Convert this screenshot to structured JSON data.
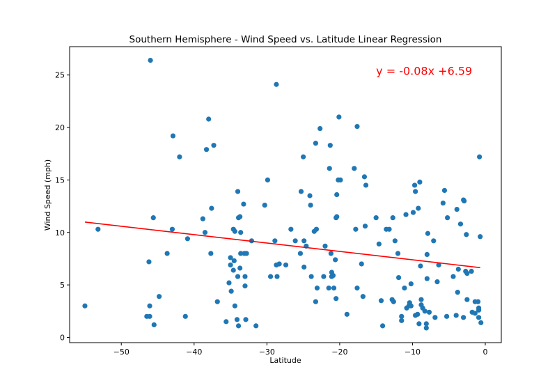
{
  "chart_data": {
    "type": "scatter",
    "title": "Southern Hemisphere - Wind Speed vs. Latitude Linear Regression",
    "xlabel": "Latitude",
    "ylabel": "Wind Speed (mph)",
    "xlim": [
      -57.1,
      2.2
    ],
    "ylim": [
      -0.5,
      27.7
    ],
    "xticks": [
      -50,
      -40,
      -30,
      -20,
      -10,
      0
    ],
    "yticks": [
      0,
      5,
      10,
      15,
      20,
      25
    ],
    "xtick_labels": [
      "−50",
      "−40",
      "−30",
      "−20",
      "−10",
      "0"
    ],
    "ytick_labels": [
      "0",
      "5",
      "10",
      "15",
      "20",
      "25"
    ],
    "grid": false,
    "point_color": "#1f77b4",
    "line_color": "#ff0000",
    "annotation": "y = -0.08x +6.59",
    "regression": {
      "slope": -0.08,
      "intercept": 6.59,
      "x_range": [
        -55,
        -0.7
      ]
    },
    "points": [
      [
        -55.0,
        3.0
      ],
      [
        -53.2,
        10.3
      ],
      [
        -46.5,
        2.0
      ],
      [
        -46.1,
        2.0
      ],
      [
        -46.0,
        26.4
      ],
      [
        -46.2,
        7.2
      ],
      [
        -46.1,
        3.0
      ],
      [
        -45.5,
        1.2
      ],
      [
        -45.6,
        11.4
      ],
      [
        -44.8,
        3.9
      ],
      [
        -43.7,
        8.0
      ],
      [
        -42.9,
        19.2
      ],
      [
        -43.0,
        10.3
      ],
      [
        -42.0,
        17.2
      ],
      [
        -41.2,
        2.0
      ],
      [
        -40.9,
        9.4
      ],
      [
        -38.8,
        11.3
      ],
      [
        -38.5,
        10.0
      ],
      [
        -38.3,
        17.9
      ],
      [
        -38.0,
        20.8
      ],
      [
        -37.7,
        8.0
      ],
      [
        -37.6,
        12.3
      ],
      [
        -37.3,
        18.3
      ],
      [
        -36.8,
        3.4
      ],
      [
        -35.6,
        1.5
      ],
      [
        -35.2,
        5.2
      ],
      [
        -35.0,
        7.6
      ],
      [
        -35.0,
        6.9
      ],
      [
        -34.9,
        4.4
      ],
      [
        -34.6,
        10.3
      ],
      [
        -34.4,
        10.1
      ],
      [
        -34.5,
        7.3
      ],
      [
        -34.6,
        6.4
      ],
      [
        -34.4,
        3.0
      ],
      [
        -34.1,
        1.7
      ],
      [
        -34.0,
        13.9
      ],
      [
        -33.9,
        11.4
      ],
      [
        -33.7,
        11.5
      ],
      [
        -33.9,
        1.1
      ],
      [
        -33.6,
        8.0
      ],
      [
        -33.7,
        6.6
      ],
      [
        -34.0,
        5.8
      ],
      [
        -33.6,
        10.0
      ],
      [
        -33.2,
        12.7
      ],
      [
        -33.1,
        8.0
      ],
      [
        -32.8,
        8.0
      ],
      [
        -33.0,
        5.8
      ],
      [
        -33.0,
        4.9
      ],
      [
        -32.9,
        1.7
      ],
      [
        -32.1,
        9.2
      ],
      [
        -31.5,
        1.1
      ],
      [
        -30.3,
        12.6
      ],
      [
        -29.9,
        15.0
      ],
      [
        -29.5,
        5.8
      ],
      [
        -28.9,
        9.2
      ],
      [
        -28.7,
        24.1
      ],
      [
        -28.6,
        5.8
      ],
      [
        -28.7,
        6.9
      ],
      [
        -28.3,
        7.0
      ],
      [
        -27.4,
        6.9
      ],
      [
        -26.7,
        10.3
      ],
      [
        -26.1,
        9.2
      ],
      [
        -25.4,
        8.0
      ],
      [
        -25.3,
        13.9
      ],
      [
        -25.0,
        17.2
      ],
      [
        -24.9,
        9.2
      ],
      [
        -24.9,
        6.7
      ],
      [
        -24.6,
        8.7
      ],
      [
        -24.1,
        13.5
      ],
      [
        -24.0,
        12.6
      ],
      [
        -23.9,
        5.8
      ],
      [
        -23.5,
        10.1
      ],
      [
        -23.2,
        10.3
      ],
      [
        -23.3,
        18.5
      ],
      [
        -23.3,
        3.4
      ],
      [
        -23.1,
        4.7
      ],
      [
        -22.7,
        19.9
      ],
      [
        -22.2,
        5.8
      ],
      [
        -22.0,
        8.7
      ],
      [
        -21.5,
        4.7
      ],
      [
        -21.4,
        16.1
      ],
      [
        -21.3,
        18.3
      ],
      [
        -21.2,
        8.0
      ],
      [
        -21.1,
        6.2
      ],
      [
        -21.1,
        5.8
      ],
      [
        -20.9,
        5.9
      ],
      [
        -20.8,
        4.7
      ],
      [
        -20.6,
        7.4
      ],
      [
        -20.5,
        3.7
      ],
      [
        -20.5,
        11.4
      ],
      [
        -20.4,
        11.5
      ],
      [
        -20.4,
        13.6
      ],
      [
        -20.2,
        15.0
      ],
      [
        -20.1,
        21.0
      ],
      [
        -19.9,
        15.0
      ],
      [
        -19.0,
        2.2
      ],
      [
        -18.0,
        16.1
      ],
      [
        -17.8,
        10.3
      ],
      [
        -17.6,
        20.1
      ],
      [
        -17.6,
        4.7
      ],
      [
        -17.0,
        7.0
      ],
      [
        -16.8,
        3.9
      ],
      [
        -16.6,
        15.3
      ],
      [
        -16.4,
        14.5
      ],
      [
        -16.5,
        10.6
      ],
      [
        -15.0,
        11.4
      ],
      [
        -14.6,
        8.9
      ],
      [
        -14.3,
        3.5
      ],
      [
        -14.1,
        1.1
      ],
      [
        -13.6,
        10.3
      ],
      [
        -13.2,
        10.3
      ],
      [
        -12.8,
        3.6
      ],
      [
        -12.6,
        3.4
      ],
      [
        -12.7,
        11.4
      ],
      [
        -12.4,
        9.2
      ],
      [
        -12.0,
        8.0
      ],
      [
        -11.9,
        5.7
      ],
      [
        -11.5,
        2.0
      ],
      [
        -11.5,
        1.6
      ],
      [
        -11.1,
        4.7
      ],
      [
        -10.9,
        11.7
      ],
      [
        -10.8,
        2.8
      ],
      [
        -10.5,
        3.0
      ],
      [
        -10.4,
        3.3
      ],
      [
        -10.2,
        5.1
      ],
      [
        -10.2,
        3.0
      ],
      [
        -9.9,
        11.9
      ],
      [
        -9.7,
        14.5
      ],
      [
        -9.6,
        13.9
      ],
      [
        -9.6,
        2.1
      ],
      [
        -9.3,
        2.2
      ],
      [
        -9.2,
        12.3
      ],
      [
        -9.1,
        1.3
      ],
      [
        -9.0,
        14.8
      ],
      [
        -8.8,
        3.1
      ],
      [
        -8.9,
        6.8
      ],
      [
        -8.8,
        3.6
      ],
      [
        -8.6,
        2.8
      ],
      [
        -8.3,
        2.5
      ],
      [
        -8.1,
        1.3
      ],
      [
        -8.1,
        0.9
      ],
      [
        -8.0,
        7.9
      ],
      [
        -8.0,
        5.6
      ],
      [
        -7.9,
        9.9
      ],
      [
        -7.7,
        2.4
      ],
      [
        -7.1,
        9.2
      ],
      [
        -6.9,
        1.9
      ],
      [
        -6.6,
        5.3
      ],
      [
        -6.4,
        6.9
      ],
      [
        -5.8,
        12.8
      ],
      [
        -5.6,
        14.0
      ],
      [
        -5.2,
        11.4
      ],
      [
        -5.3,
        2.0
      ],
      [
        -4.4,
        5.8
      ],
      [
        -4.0,
        2.1
      ],
      [
        -3.8,
        4.3
      ],
      [
        -3.9,
        12.2
      ],
      [
        -3.7,
        6.5
      ],
      [
        -3.4,
        10.8
      ],
      [
        -3.0,
        13.1
      ],
      [
        -3.0,
        1.9
      ],
      [
        -2.9,
        13.0
      ],
      [
        -2.7,
        6.3
      ],
      [
        -2.6,
        9.8
      ],
      [
        -2.5,
        6.1
      ],
      [
        -2.5,
        3.6
      ],
      [
        -1.9,
        6.3
      ],
      [
        -1.8,
        2.4
      ],
      [
        -1.4,
        3.4
      ],
      [
        -1.4,
        2.3
      ],
      [
        -1.0,
        3.4
      ],
      [
        -0.9,
        2.8
      ],
      [
        -0.9,
        2.6
      ],
      [
        -0.9,
        1.9
      ],
      [
        -0.8,
        17.2
      ],
      [
        -0.7,
        9.6
      ],
      [
        -0.6,
        1.4
      ]
    ]
  }
}
